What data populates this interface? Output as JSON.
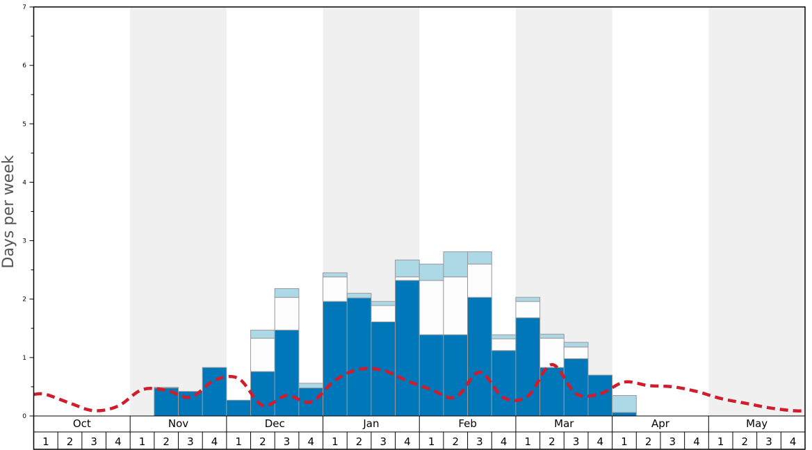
{
  "chart_data": {
    "type": "bar",
    "ylabel": "Days per week",
    "ylim": [
      0,
      7
    ],
    "y_ticks": [
      "0",
      "1",
      "2",
      "3",
      "4",
      "5",
      "6",
      "7"
    ],
    "months": [
      "Oct",
      "Nov",
      "Dec",
      "Jan",
      "Feb",
      "Mar",
      "Apr",
      "May"
    ],
    "week_labels": [
      "1",
      "2",
      "3",
      "4"
    ],
    "colors": {
      "base": "#0077b8",
      "middle": "#fdfdfd",
      "top": "#add8e6",
      "average_line": "#d01c2b",
      "alt_month_band": "#f0f0f0"
    },
    "series": [
      {
        "values": [
          0,
          0,
          0,
          0,
          0,
          0.48,
          0.42,
          0.83,
          0.27,
          0.76,
          1.47,
          0.48,
          1.96,
          2.02,
          1.61,
          2.32,
          1.39,
          1.39,
          2.03,
          1.12,
          1.68,
          0.83,
          0.98,
          0.7,
          0.06,
          0,
          0,
          0,
          0,
          0,
          0,
          0
        ]
      },
      {
        "values": [
          0,
          0,
          0,
          0,
          0,
          0,
          0,
          0,
          0,
          0.57,
          0.56,
          0,
          0.42,
          0,
          0.28,
          0.06,
          0.93,
          0.99,
          0.57,
          0.2,
          0.28,
          0.5,
          0.2,
          0,
          0,
          0,
          0,
          0,
          0,
          0,
          0,
          0
        ]
      },
      {
        "values": [
          0,
          0,
          0,
          0,
          0,
          0.01,
          0,
          0,
          0,
          0.14,
          0.15,
          0.08,
          0.07,
          0.08,
          0.07,
          0.29,
          0.28,
          0.43,
          0.21,
          0.07,
          0.07,
          0.07,
          0.08,
          0,
          0.29,
          0,
          0,
          0,
          0,
          0,
          0,
          0
        ]
      },
      {
        "values": [
          0.37,
          0.22,
          0.09,
          0.17,
          0.45,
          0.44,
          0.32,
          0.61,
          0.64,
          0.18,
          0.35,
          0.24,
          0.61,
          0.8,
          0.78,
          0.6,
          0.45,
          0.32,
          0.75,
          0.31,
          0.34,
          0.88,
          0.38,
          0.38,
          0.58,
          0.52,
          0.5,
          0.42,
          0.3,
          0.22,
          0.14,
          0.09
        ]
      }
    ]
  }
}
